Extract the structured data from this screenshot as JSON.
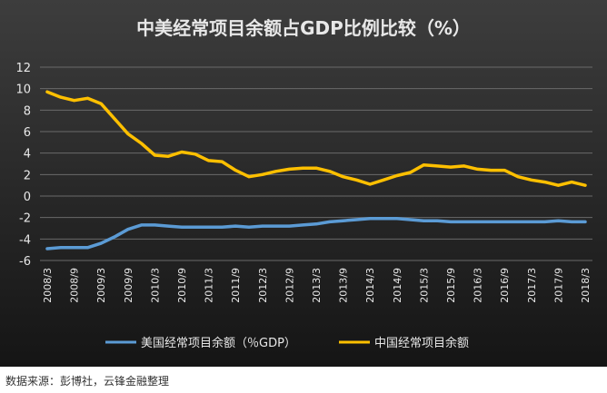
{
  "colors": {
    "background_top": "#3d3d3d",
    "background_bottom": "#151515",
    "gridline": "#6a6a6a",
    "text": "#e8e8e8",
    "us_series": "#5b9bd5",
    "china_series": "#ffc000"
  },
  "source_note": "数据来源：彭博社，云锋金融整理",
  "chart_data": {
    "type": "line",
    "title": "中美经常项目余额占GDP比例比较（%）",
    "grid": "horizontal",
    "legend_position": "bottom",
    "ylim": [
      -6,
      12
    ],
    "yticks": [
      "12",
      "10",
      "8",
      "6",
      "4",
      "2",
      "0",
      "-2",
      "-4",
      "-6"
    ],
    "categories": [
      "2008/3",
      "2008/6",
      "2008/9",
      "2008/12",
      "2009/3",
      "2009/6",
      "2009/9",
      "2009/12",
      "2010/3",
      "2010/6",
      "2010/9",
      "2010/12",
      "2011/3",
      "2011/6",
      "2011/9",
      "2011/12",
      "2012/3",
      "2012/6",
      "2012/9",
      "2012/12",
      "2013/3",
      "2013/6",
      "2013/9",
      "2013/12",
      "2014/3",
      "2014/6",
      "2014/9",
      "2014/12",
      "2015/3",
      "2015/6",
      "2015/9",
      "2015/12",
      "2016/3",
      "2016/6",
      "2016/9",
      "2016/12",
      "2017/3",
      "2017/6",
      "2017/9",
      "2017/12",
      "2018/3"
    ],
    "xtick_labels": [
      "2008/3",
      "2008/9",
      "2009/3",
      "2009/9",
      "2010/3",
      "2010/9",
      "2011/3",
      "2011/9",
      "2012/3",
      "2012/9",
      "2013/3",
      "2013/9",
      "2014/3",
      "2014/9",
      "2015/3",
      "2015/9",
      "2016/3",
      "2016/9",
      "2017/3",
      "2017/9",
      "2018/3"
    ],
    "series": [
      {
        "name": "美国经常项目余额（％GDP）",
        "values": [
          -4.9,
          -4.8,
          -4.8,
          -4.8,
          -4.4,
          -3.8,
          -3.1,
          -2.7,
          -2.7,
          -2.8,
          -2.9,
          -2.9,
          -2.9,
          -2.9,
          -2.8,
          -2.9,
          -2.8,
          -2.8,
          -2.8,
          -2.7,
          -2.6,
          -2.4,
          -2.3,
          -2.2,
          -2.1,
          -2.1,
          -2.1,
          -2.2,
          -2.3,
          -2.3,
          -2.4,
          -2.4,
          -2.4,
          -2.4,
          -2.4,
          -2.4,
          -2.4,
          -2.4,
          -2.3,
          -2.4,
          -2.4
        ]
      },
      {
        "name": "中国经常项目余额",
        "values": [
          9.7,
          9.2,
          8.9,
          9.1,
          8.6,
          7.2,
          5.8,
          4.9,
          3.8,
          3.7,
          4.1,
          3.9,
          3.3,
          3.2,
          2.4,
          1.8,
          2.0,
          2.3,
          2.5,
          2.6,
          2.6,
          2.3,
          1.8,
          1.5,
          1.1,
          1.5,
          1.9,
          2.2,
          2.9,
          2.8,
          2.7,
          2.8,
          2.5,
          2.4,
          2.4,
          1.8,
          1.5,
          1.3,
          1.0,
          1.3,
          1.0
        ]
      }
    ]
  }
}
